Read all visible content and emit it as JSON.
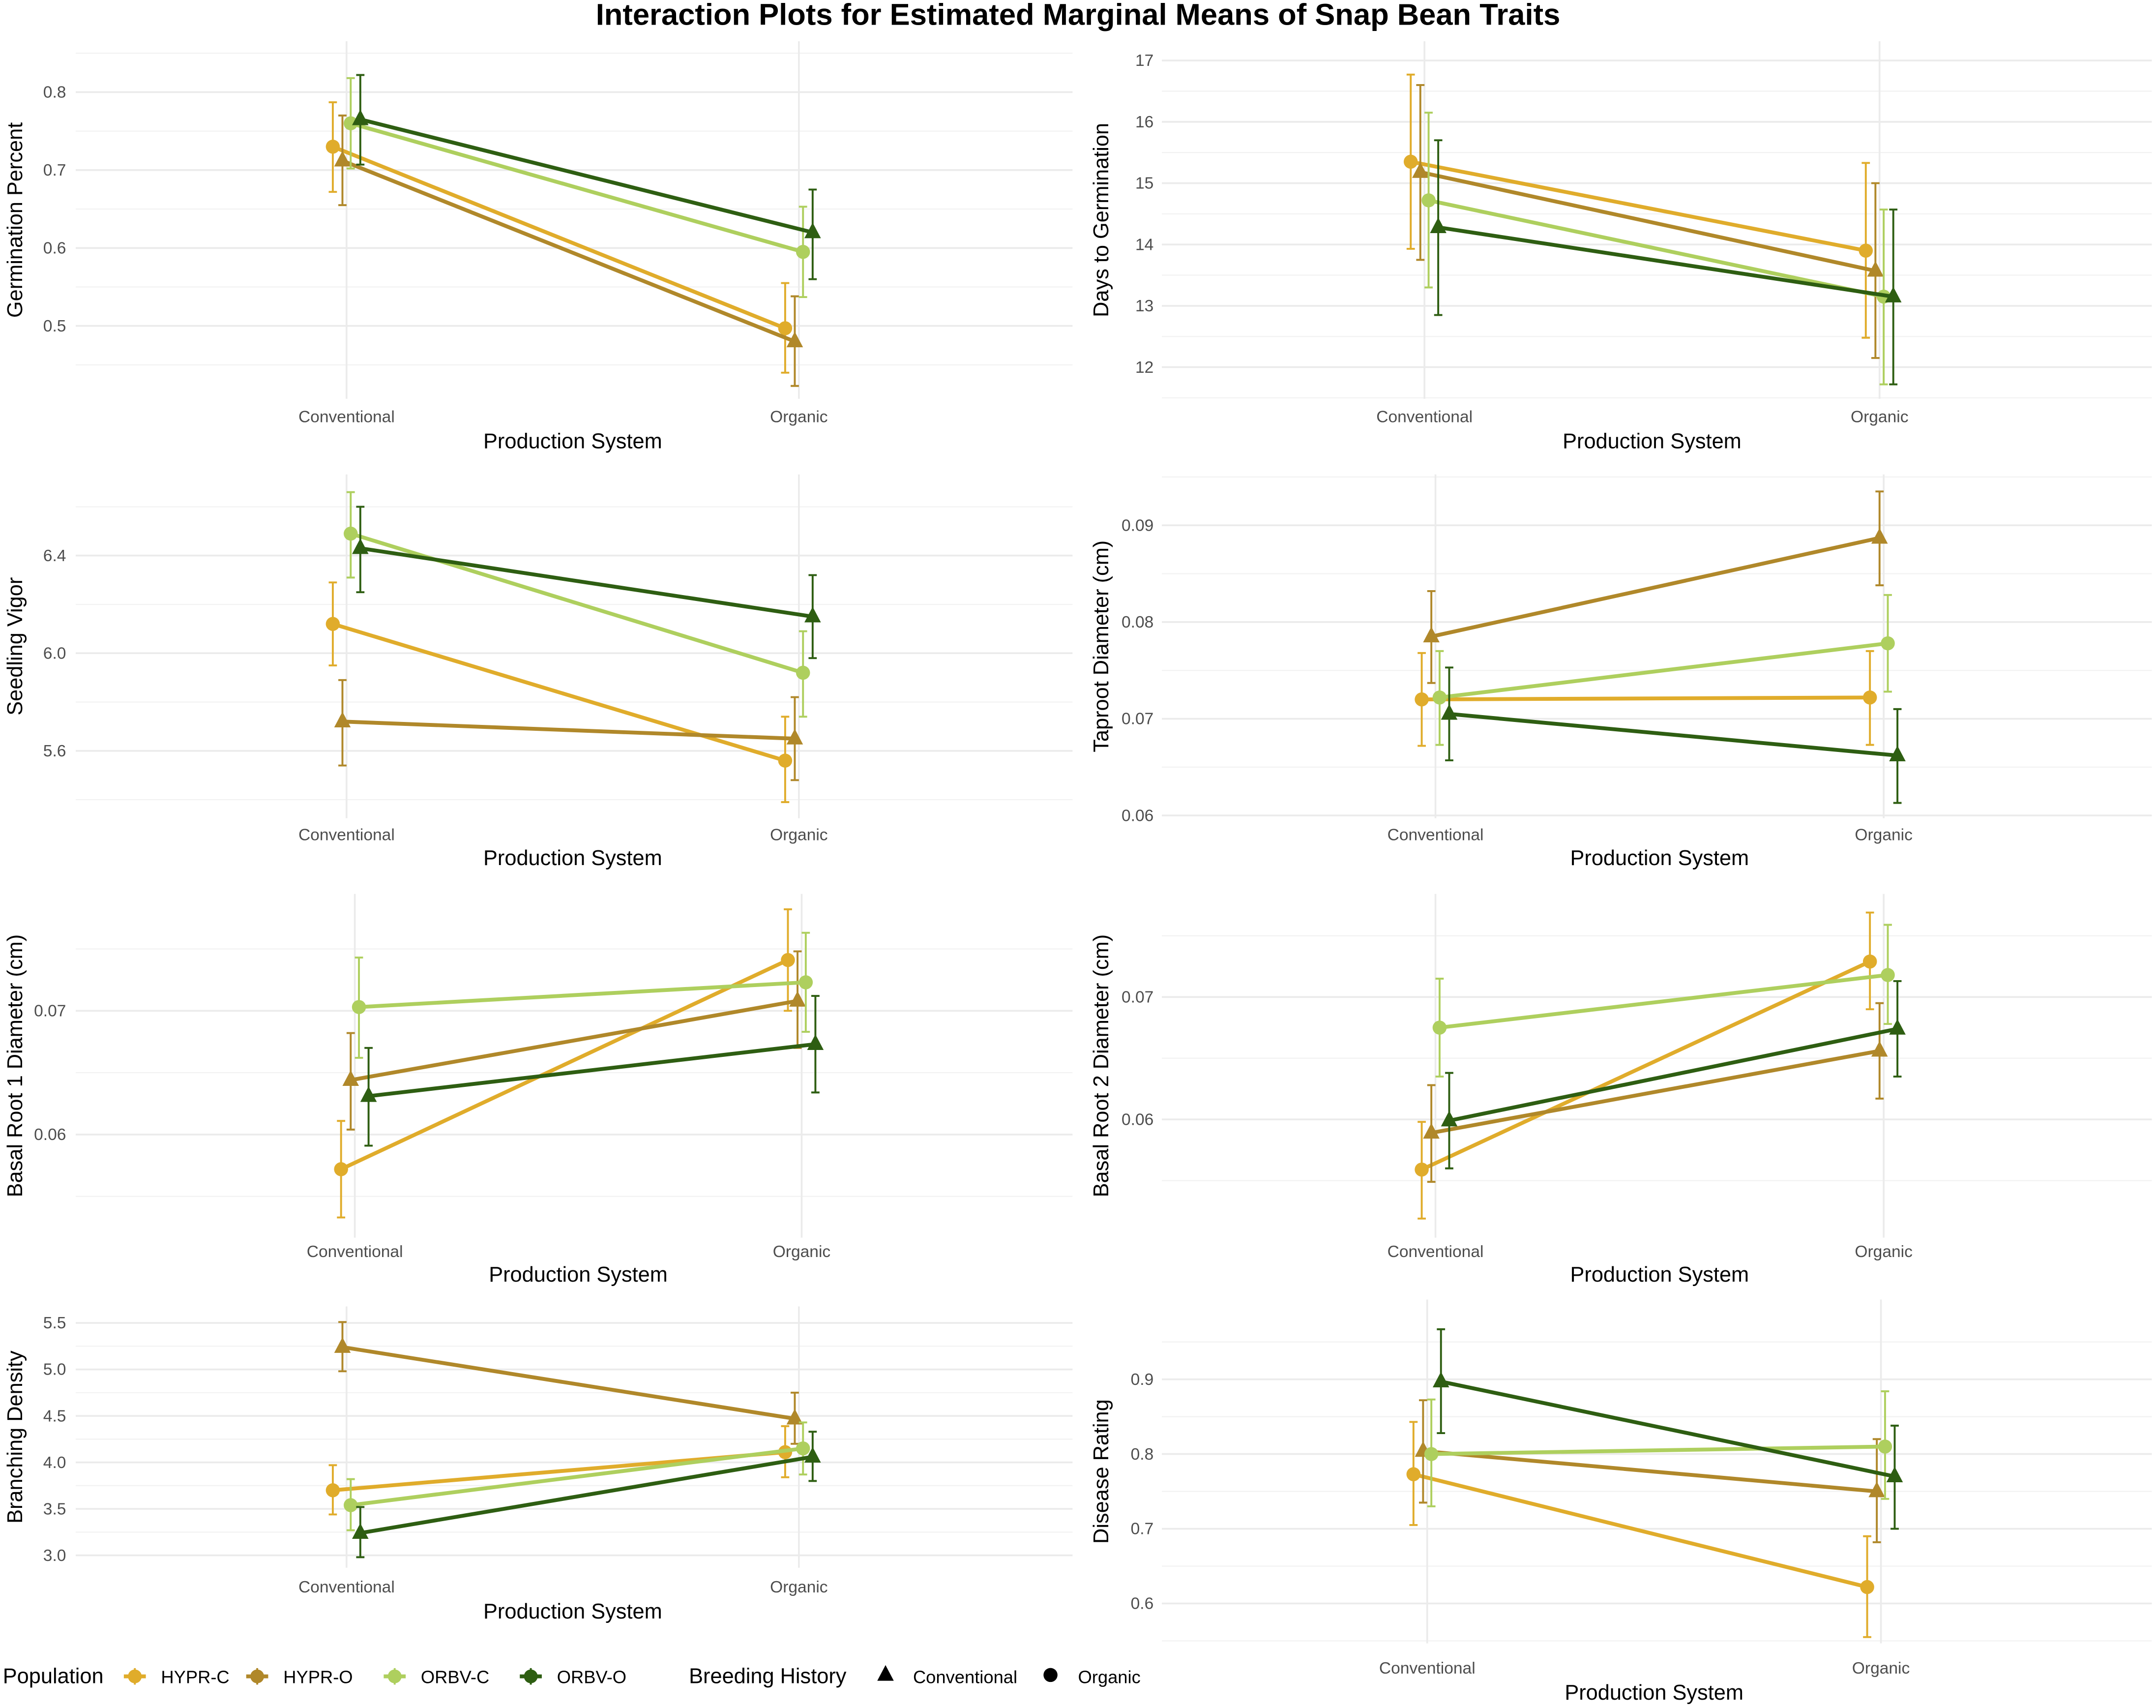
{
  "chart_data": {
    "type": "line",
    "title": "Interaction Plots for Estimated Marginal Means of Snap Bean Traits",
    "categories": [
      "Conventional",
      "Organic"
    ],
    "series_meta": [
      {
        "name": "HYPR-C",
        "color": "#E0AC2B",
        "breeding_history": "Organic"
      },
      {
        "name": "HYPR-O",
        "color": "#B0882A",
        "breeding_history": "Conventional"
      },
      {
        "name": "ORBV-C",
        "color": "#AECF5E",
        "breeding_history": "Organic"
      },
      {
        "name": "ORBV-O",
        "color": "#2E5E12",
        "breeding_history": "Conventional"
      }
    ],
    "legend": {
      "population_title": "Population",
      "population_items": [
        "HYPR-C",
        "HYPR-O",
        "ORBV-C",
        "ORBV-O"
      ],
      "breeding_title": "Breeding History",
      "breeding_items": [
        {
          "label": "Conventional",
          "shape": "triangle"
        },
        {
          "label": "Organic",
          "shape": "circle"
        }
      ],
      "placement": "bottom-left"
    },
    "panels": [
      {
        "ylabel": "Germination Percent",
        "xlabel": "Production System",
        "yticks": [
          "0.5",
          "0.6",
          "0.7",
          "0.8"
        ],
        "tick_values": [
          0.5,
          0.6,
          0.7,
          0.8
        ],
        "series": [
          {
            "name": "HYPR-C",
            "mean": [
              0.73,
              0.497
            ],
            "lower": [
              0.672,
              0.44
            ],
            "upper": [
              0.787,
              0.555
            ]
          },
          {
            "name": "HYPR-O",
            "mean": [
              0.712,
              0.48
            ],
            "lower": [
              0.655,
              0.423
            ],
            "upper": [
              0.77,
              0.538
            ]
          },
          {
            "name": "ORBV-C",
            "mean": [
              0.76,
              0.595
            ],
            "lower": [
              0.702,
              0.537
            ],
            "upper": [
              0.818,
              0.653
            ]
          },
          {
            "name": "ORBV-O",
            "mean": [
              0.765,
              0.62
            ],
            "lower": [
              0.707,
              0.56
            ],
            "upper": [
              0.822,
              0.675
            ]
          }
        ]
      },
      {
        "ylabel": "Days to Germination",
        "xlabel": "Production System",
        "yticks": [
          "12",
          "13",
          "14",
          "15",
          "16",
          "17"
        ],
        "tick_values": [
          12,
          13,
          14,
          15,
          16,
          17
        ],
        "series": [
          {
            "name": "HYPR-C",
            "mean": [
              15.35,
              13.9
            ],
            "lower": [
              13.93,
              12.48
            ],
            "upper": [
              16.77,
              15.33
            ]
          },
          {
            "name": "HYPR-O",
            "mean": [
              15.18,
              13.57
            ],
            "lower": [
              13.75,
              12.15
            ],
            "upper": [
              16.6,
              15.0
            ]
          },
          {
            "name": "ORBV-C",
            "mean": [
              14.72,
              13.15
            ],
            "lower": [
              13.3,
              11.72
            ],
            "upper": [
              16.15,
              14.57
            ]
          },
          {
            "name": "ORBV-O",
            "mean": [
              14.28,
              13.15
            ],
            "lower": [
              12.85,
              11.72
            ],
            "upper": [
              15.7,
              14.57
            ]
          }
        ]
      },
      {
        "ylabel": "Seedling Vigor",
        "xlabel": "Production System",
        "yticks": [
          "5.6",
          "6.0",
          "6.4"
        ],
        "tick_values": [
          5.6,
          6.0,
          6.4
        ],
        "series": [
          {
            "name": "HYPR-C",
            "mean": [
              6.12,
              5.56
            ],
            "lower": [
              5.95,
              5.39
            ],
            "upper": [
              6.29,
              5.74
            ]
          },
          {
            "name": "HYPR-O",
            "mean": [
              5.72,
              5.65
            ],
            "lower": [
              5.54,
              5.48
            ],
            "upper": [
              5.89,
              5.82
            ]
          },
          {
            "name": "ORBV-C",
            "mean": [
              6.49,
              5.92
            ],
            "lower": [
              6.31,
              5.74
            ],
            "upper": [
              6.66,
              6.09
            ]
          },
          {
            "name": "ORBV-O",
            "mean": [
              6.43,
              6.15
            ],
            "lower": [
              6.25,
              5.98
            ],
            "upper": [
              6.6,
              6.32
            ]
          }
        ]
      },
      {
        "ylabel": "Taproot Diameter (cm)",
        "xlabel": "Production System",
        "yticks": [
          "0.06",
          "0.07",
          "0.08",
          "0.09"
        ],
        "tick_values": [
          0.06,
          0.07,
          0.08,
          0.09
        ],
        "series": [
          {
            "name": "HYPR-C",
            "mean": [
              0.072,
              0.0722
            ],
            "lower": [
              0.0672,
              0.0673
            ],
            "upper": [
              0.0768,
              0.077
            ]
          },
          {
            "name": "HYPR-O",
            "mean": [
              0.0785,
              0.0887
            ],
            "lower": [
              0.0737,
              0.0838
            ],
            "upper": [
              0.0832,
              0.0935
            ]
          },
          {
            "name": "ORBV-C",
            "mean": [
              0.0722,
              0.0778
            ],
            "lower": [
              0.0673,
              0.0728
            ],
            "upper": [
              0.077,
              0.0828
            ]
          },
          {
            "name": "ORBV-O",
            "mean": [
              0.0705,
              0.0662
            ],
            "lower": [
              0.0657,
              0.0613
            ],
            "upper": [
              0.0753,
              0.071
            ]
          }
        ]
      },
      {
        "ylabel": "Basal Root 1 Diameter (cm)",
        "xlabel": "Production System",
        "yticks": [
          "0.06",
          "0.07"
        ],
        "tick_values": [
          0.06,
          0.07
        ],
        "series": [
          {
            "name": "HYPR-C",
            "mean": [
              0.0572,
              0.0741
            ],
            "lower": [
              0.0533,
              0.07
            ],
            "upper": [
              0.0611,
              0.0782
            ]
          },
          {
            "name": "HYPR-O",
            "mean": [
              0.0644,
              0.0708
            ],
            "lower": [
              0.0604,
              0.067
            ],
            "upper": [
              0.0682,
              0.0748
            ]
          },
          {
            "name": "ORBV-C",
            "mean": [
              0.0703,
              0.0723
            ],
            "lower": [
              0.0662,
              0.0683
            ],
            "upper": [
              0.0743,
              0.0763
            ]
          },
          {
            "name": "ORBV-O",
            "mean": [
              0.0631,
              0.0673
            ],
            "lower": [
              0.0591,
              0.0634
            ],
            "upper": [
              0.067,
              0.0712
            ]
          }
        ]
      },
      {
        "ylabel": "Basal Root 2 Diameter (cm)",
        "xlabel": "Production System",
        "yticks": [
          "0.06",
          "0.07"
        ],
        "tick_values": [
          0.06,
          0.07
        ],
        "series": [
          {
            "name": "HYPR-C",
            "mean": [
              0.0559,
              0.0729
            ],
            "lower": [
              0.0519,
              0.069
            ],
            "upper": [
              0.0598,
              0.0769
            ]
          },
          {
            "name": "HYPR-O",
            "mean": [
              0.0589,
              0.0656
            ],
            "lower": [
              0.0549,
              0.0617
            ],
            "upper": [
              0.0628,
              0.0695
            ]
          },
          {
            "name": "ORBV-C",
            "mean": [
              0.0675,
              0.0718
            ],
            "lower": [
              0.0635,
              0.0678
            ],
            "upper": [
              0.0715,
              0.0759
            ]
          },
          {
            "name": "ORBV-O",
            "mean": [
              0.0599,
              0.0674
            ],
            "lower": [
              0.056,
              0.0635
            ],
            "upper": [
              0.0638,
              0.0713
            ]
          }
        ]
      },
      {
        "ylabel": "Branching Density",
        "xlabel": "Production System",
        "yticks": [
          "3.0",
          "3.5",
          "4.0",
          "4.5",
          "5.0",
          "5.5"
        ],
        "tick_values": [
          3.0,
          3.5,
          4.0,
          4.5,
          5.0,
          5.5
        ],
        "series": [
          {
            "name": "HYPR-C",
            "mean": [
              3.7,
              4.11
            ],
            "lower": [
              3.44,
              3.84
            ],
            "upper": [
              3.97,
              4.39
            ]
          },
          {
            "name": "HYPR-O",
            "mean": [
              5.24,
              4.47
            ],
            "lower": [
              4.98,
              4.2
            ],
            "upper": [
              5.51,
              4.75
            ]
          },
          {
            "name": "ORBV-C",
            "mean": [
              3.54,
              4.15
            ],
            "lower": [
              3.27,
              3.87
            ],
            "upper": [
              3.82,
              4.43
            ]
          },
          {
            "name": "ORBV-O",
            "mean": [
              3.24,
              4.06
            ],
            "lower": [
              2.98,
              3.8
            ],
            "upper": [
              3.52,
              4.33
            ]
          }
        ]
      },
      {
        "ylabel": "Disease Rating",
        "xlabel": "Production System",
        "yticks": [
          "0.6",
          "0.7",
          "0.8",
          "0.9"
        ],
        "tick_values": [
          0.6,
          0.7,
          0.8,
          0.9
        ],
        "series": [
          {
            "name": "HYPR-C",
            "mean": [
              0.773,
              0.622
            ],
            "lower": [
              0.705,
              0.555
            ],
            "upper": [
              0.843,
              0.69
            ]
          },
          {
            "name": "HYPR-O",
            "mean": [
              0.804,
              0.75
            ],
            "lower": [
              0.735,
              0.682
            ],
            "upper": [
              0.872,
              0.82
            ]
          },
          {
            "name": "ORBV-C",
            "mean": [
              0.8,
              0.81
            ],
            "lower": [
              0.73,
              0.74
            ],
            "upper": [
              0.873,
              0.884
            ]
          },
          {
            "name": "ORBV-O",
            "mean": [
              0.897,
              0.77
            ],
            "lower": [
              0.828,
              0.7
            ],
            "upper": [
              0.967,
              0.838
            ]
          }
        ]
      }
    ]
  }
}
